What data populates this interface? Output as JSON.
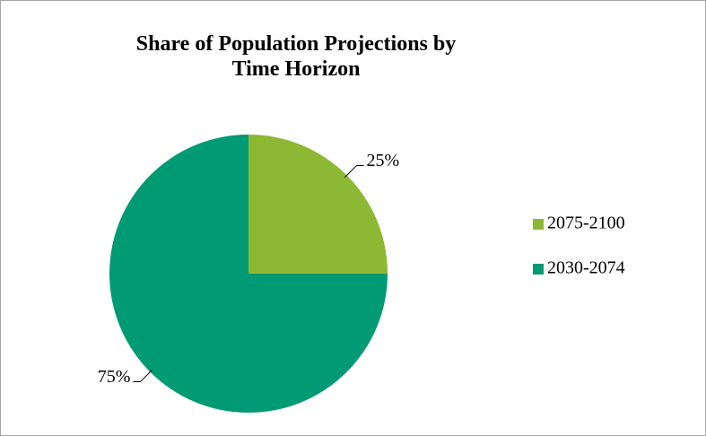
{
  "chart_data": {
    "type": "pie",
    "title": "Share of Population Projections by Time Horizon",
    "categories": [
      "2075-2100",
      "2030-2074"
    ],
    "values": [
      25,
      75
    ],
    "value_labels": [
      "25%",
      "75%"
    ],
    "colors": [
      "#8db833",
      "#009a74"
    ],
    "legend": "right"
  }
}
